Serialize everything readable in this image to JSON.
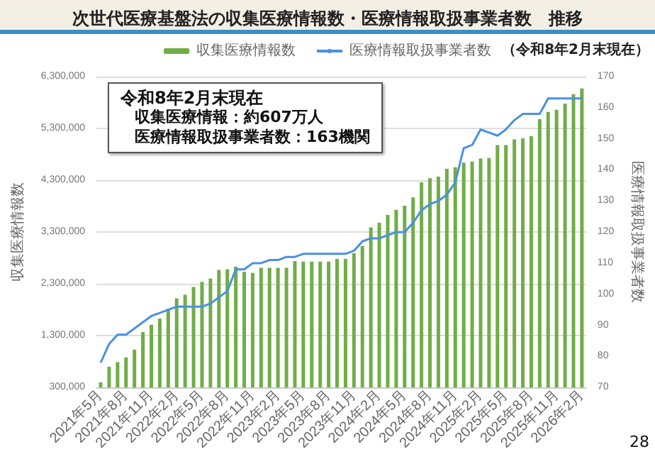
{
  "chart_data": {
    "type": "bar",
    "title": "次世代医療基盤法の収集医療情報数・医療情報取扱事業者数　推移",
    "subtitle": "（令和8年2月末現在）",
    "ylabel": "収集医療情報数",
    "y2label": "医療情報取扱事業者数",
    "annotations": [
      "令和8年2月末現在",
      "収集医療情報：約607万人",
      "医療情報取扱事業者数：163機関",
      "28"
    ],
    "categories": [
      "2021年5月",
      null,
      null,
      "2021年8月",
      null,
      null,
      "2021年11月",
      null,
      null,
      "2022年2月",
      null,
      null,
      "2022年5月",
      null,
      null,
      "2022年8月",
      null,
      null,
      "2022年11月",
      null,
      null,
      "2023年2月",
      null,
      null,
      "2023年5月",
      null,
      null,
      "2023年8月",
      null,
      null,
      "2023年11月",
      null,
      null,
      "2024年2月",
      null,
      null,
      "2024年5月",
      null,
      null,
      "2024年8月",
      null,
      null,
      "2024年11月",
      null,
      null,
      "2025年2月",
      null,
      null,
      "2025年5月",
      null,
      null,
      "2025年8月",
      null,
      null,
      "2025年11月",
      null,
      null,
      "2026年2月"
    ],
    "series": [
      {
        "name": "収集医療情報数",
        "color": "#70ad47",
        "values": [
          400000,
          700000,
          790000,
          880000,
          1030000,
          1370000,
          1510000,
          1630000,
          1820000,
          2020000,
          2090000,
          2240000,
          2340000,
          2400000,
          2570000,
          2580000,
          2630000,
          2530000,
          2510000,
          2610000,
          2610000,
          2610000,
          2610000,
          2740000,
          2730000,
          2730000,
          2730000,
          2730000,
          2780000,
          2780000,
          2890000,
          3030000,
          3390000,
          3480000,
          3630000,
          3730000,
          3810000,
          3970000,
          4260000,
          4340000,
          4370000,
          4520000,
          4550000,
          4640000,
          4660000,
          4720000,
          4730000,
          4980000,
          4980000,
          5090000,
          5110000,
          5150000,
          5480000,
          5620000,
          5660000,
          5780000,
          5960000,
          6070000
        ]
      },
      {
        "name": "医療情報取扱事業者数",
        "type": "line",
        "axis": "y2",
        "color": "#4a90e2",
        "values": [
          78,
          84,
          87,
          87,
          89,
          91,
          93,
          94,
          95,
          96,
          96,
          96,
          96,
          97,
          99,
          101,
          108,
          108,
          110,
          110,
          111,
          111,
          112,
          112,
          113,
          113,
          113,
          113,
          113,
          113,
          114,
          117,
          118,
          118,
          119,
          120,
          120,
          123,
          127,
          129,
          130,
          132,
          136,
          147,
          148,
          153,
          152,
          151,
          153,
          156,
          158,
          158,
          158,
          163,
          163,
          163,
          163,
          163
        ]
      }
    ],
    "ylim": [
      300000,
      6300000
    ],
    "yticks": [
      {
        "value": 300000,
        "label": "300,000"
      },
      {
        "value": 1300000,
        "label": "1,300,000"
      },
      {
        "value": 2300000,
        "label": "2,300,000"
      },
      {
        "value": 3300000,
        "label": "3,300,000"
      },
      {
        "value": 4300000,
        "label": "4,300,000"
      },
      {
        "value": 5300000,
        "label": "5,300,000"
      },
      {
        "value": 6300000,
        "label": "6,300,000"
      }
    ],
    "y2lim": [
      70,
      170
    ],
    "y2ticks": [
      70,
      80,
      90,
      100,
      110,
      120,
      130,
      140,
      150,
      160,
      170
    ],
    "grid": "y",
    "legend": "top"
  }
}
